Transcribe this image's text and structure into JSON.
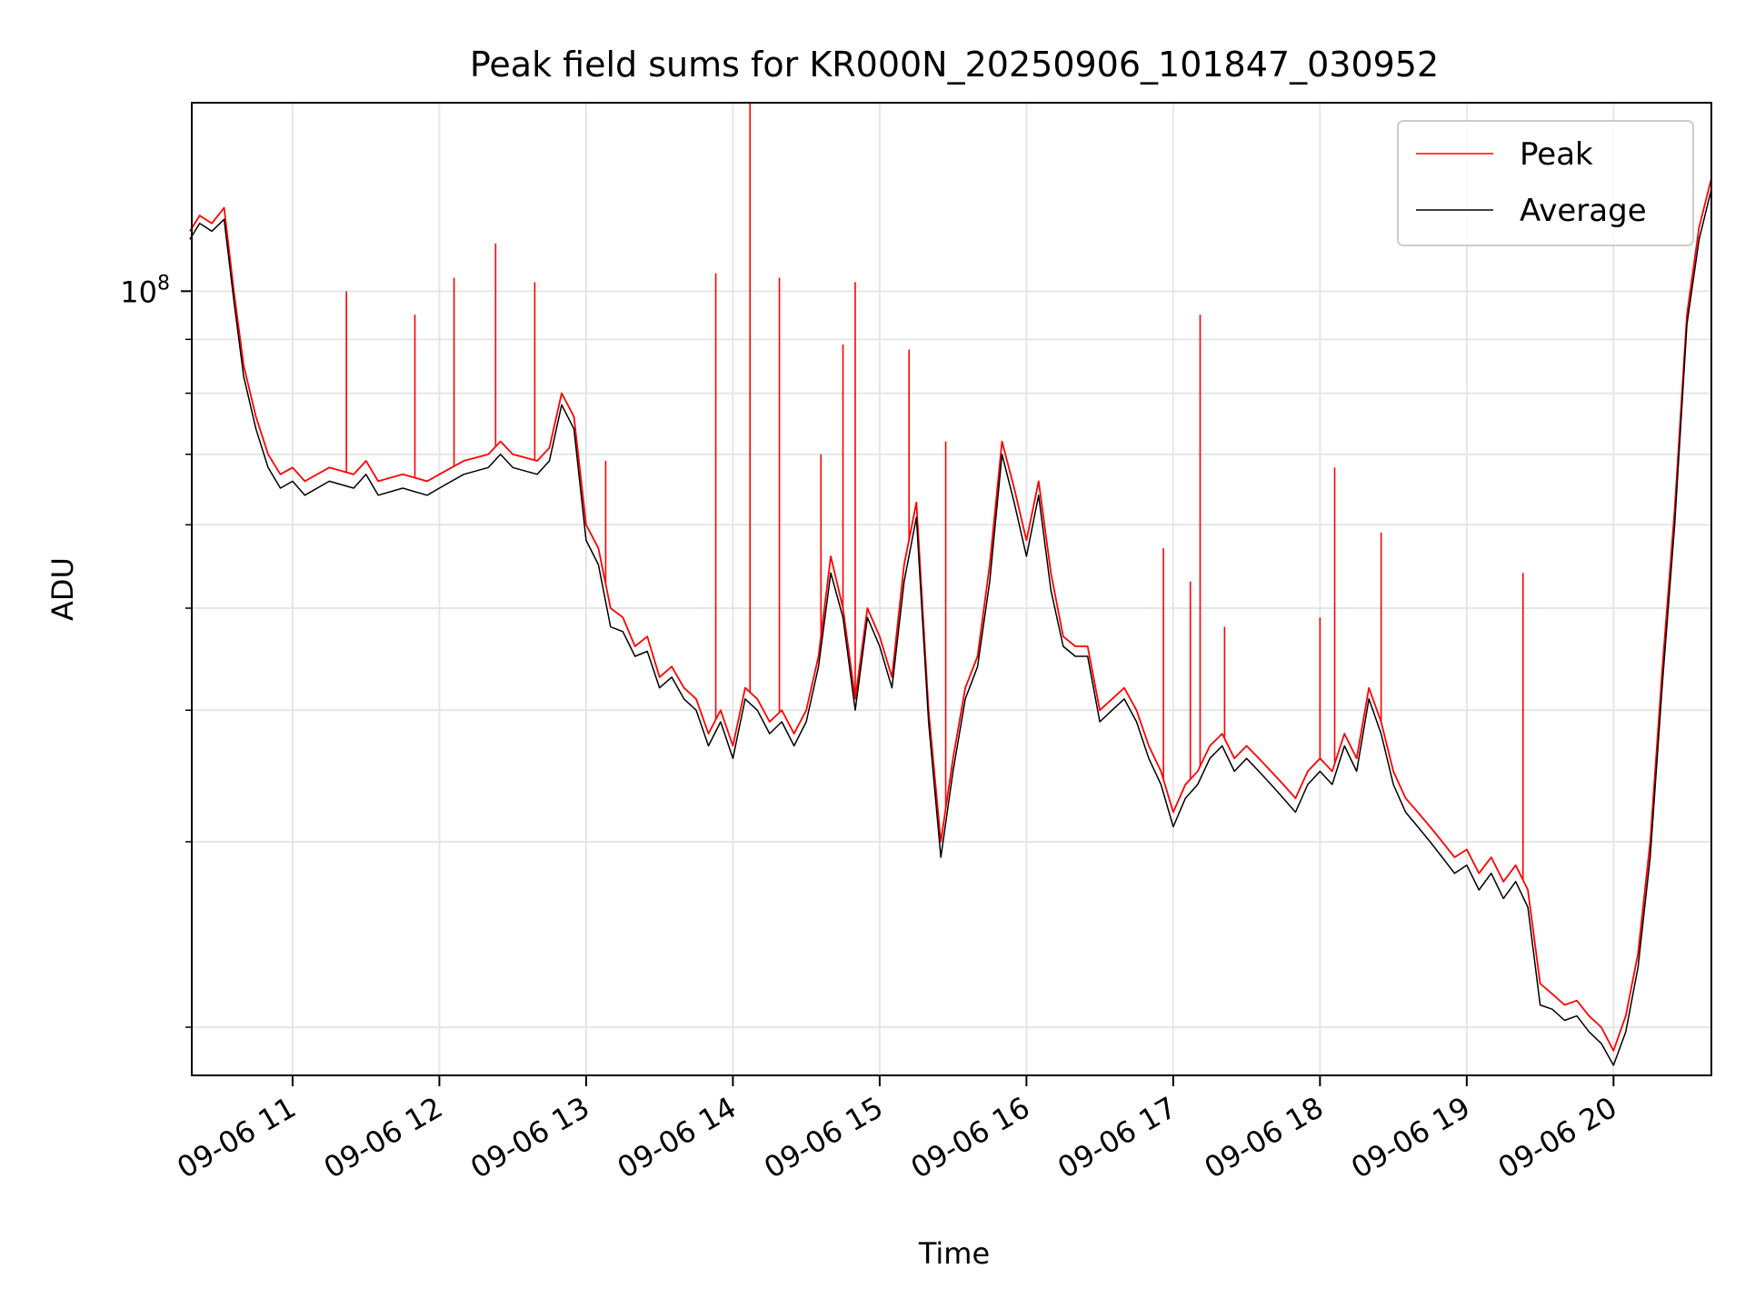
{
  "chart_data": {
    "type": "line",
    "title": "Peak field sums for KR000N_20250906_101847_030952",
    "xlabel": "Time",
    "ylabel": "ADU",
    "y_scale": "log",
    "grid": true,
    "legend_position": "top-right",
    "xlim": [
      "2025-09-06 10:18:47",
      "2025-09-06 20:40:00"
    ],
    "ylim": [
      18000000,
      151000000
    ],
    "x_tick_labels": [
      "09-06 11",
      "09-06 12",
      "09-06 13",
      "09-06 14",
      "09-06 15",
      "09-06 16",
      "09-06 17",
      "09-06 18",
      "09-06 19",
      "09-06 20"
    ],
    "y_tick_labels": [
      {
        "value": 100000000,
        "label": "10",
        "exp": "8"
      }
    ],
    "y_minor_ticks": [
      20000000,
      30000000,
      40000000,
      50000000,
      60000000,
      70000000,
      80000000,
      90000000
    ],
    "series": [
      {
        "name": "Peak",
        "color": "#ff0000",
        "points": [
          [
            "10:18",
            114000000
          ],
          [
            "10:22",
            118000000
          ],
          [
            "10:27",
            116000000
          ],
          [
            "10:32",
            120000000
          ],
          [
            "10:36",
            100000000
          ],
          [
            "10:40",
            85000000
          ],
          [
            "10:45",
            76000000
          ],
          [
            "10:50",
            70000000
          ],
          [
            "10:55",
            67000000
          ],
          [
            "11:00",
            68000000
          ],
          [
            "11:05",
            66000000
          ],
          [
            "11:15",
            68000000
          ],
          [
            "11:25",
            67000000
          ],
          [
            "11:30",
            69000000
          ],
          [
            "11:35",
            66000000
          ],
          [
            "11:45",
            67000000
          ],
          [
            "11:55",
            66000000
          ],
          [
            "12:00",
            67000000
          ],
          [
            "12:10",
            69000000
          ],
          [
            "12:20",
            70000000
          ],
          [
            "12:25",
            72000000
          ],
          [
            "12:30",
            70000000
          ],
          [
            "12:40",
            69000000
          ],
          [
            "12:45",
            71000000
          ],
          [
            "12:50",
            80000000
          ],
          [
            "12:55",
            76000000
          ],
          [
            "13:00",
            60000000
          ],
          [
            "13:05",
            57000000
          ],
          [
            "13:10",
            50000000
          ],
          [
            "13:15",
            49000000
          ],
          [
            "13:20",
            46000000
          ],
          [
            "13:25",
            47000000
          ],
          [
            "13:30",
            43000000
          ],
          [
            "13:35",
            44000000
          ],
          [
            "13:40",
            42000000
          ],
          [
            "13:45",
            41000000
          ],
          [
            "13:50",
            38000000
          ],
          [
            "13:55",
            40000000
          ],
          [
            "14:00",
            37000000
          ],
          [
            "14:05",
            42000000
          ],
          [
            "14:10",
            41000000
          ],
          [
            "14:15",
            39000000
          ],
          [
            "14:20",
            40000000
          ],
          [
            "14:25",
            38000000
          ],
          [
            "14:30",
            40000000
          ],
          [
            "14:35",
            45000000
          ],
          [
            "14:40",
            56000000
          ],
          [
            "14:45",
            50000000
          ],
          [
            "14:50",
            41000000
          ],
          [
            "14:55",
            50000000
          ],
          [
            "15:00",
            47000000
          ],
          [
            "15:05",
            43000000
          ],
          [
            "15:10",
            55000000
          ],
          [
            "15:15",
            63000000
          ],
          [
            "15:20",
            40000000
          ],
          [
            "15:25",
            30000000
          ],
          [
            "15:30",
            36000000
          ],
          [
            "15:35",
            42000000
          ],
          [
            "15:40",
            45000000
          ],
          [
            "15:45",
            55000000
          ],
          [
            "15:50",
            72000000
          ],
          [
            "15:55",
            65000000
          ],
          [
            "16:00",
            58000000
          ],
          [
            "16:05",
            66000000
          ],
          [
            "16:10",
            54000000
          ],
          [
            "16:15",
            47000000
          ],
          [
            "16:20",
            46000000
          ],
          [
            "16:25",
            46000000
          ],
          [
            "16:30",
            40000000
          ],
          [
            "16:35",
            41000000
          ],
          [
            "16:40",
            42000000
          ],
          [
            "16:45",
            40000000
          ],
          [
            "16:50",
            37000000
          ],
          [
            "16:55",
            35000000
          ],
          [
            "17:00",
            32000000
          ],
          [
            "17:05",
            34000000
          ],
          [
            "17:10",
            35000000
          ],
          [
            "17:15",
            37000000
          ],
          [
            "17:20",
            38000000
          ],
          [
            "17:25",
            36000000
          ],
          [
            "17:30",
            37000000
          ],
          [
            "17:35",
            36000000
          ],
          [
            "17:40",
            35000000
          ],
          [
            "17:45",
            34000000
          ],
          [
            "17:50",
            33000000
          ],
          [
            "17:55",
            35000000
          ],
          [
            "18:00",
            36000000
          ],
          [
            "18:05",
            35000000
          ],
          [
            "18:10",
            38000000
          ],
          [
            "18:15",
            36000000
          ],
          [
            "18:20",
            42000000
          ],
          [
            "18:25",
            39000000
          ],
          [
            "18:30",
            35000000
          ],
          [
            "18:35",
            33000000
          ],
          [
            "18:40",
            32000000
          ],
          [
            "18:45",
            31000000
          ],
          [
            "18:50",
            30000000
          ],
          [
            "18:55",
            29000000
          ],
          [
            "19:00",
            29500000
          ],
          [
            "19:05",
            28000000
          ],
          [
            "19:10",
            29000000
          ],
          [
            "19:15",
            27500000
          ],
          [
            "19:20",
            28500000
          ],
          [
            "19:25",
            27000000
          ],
          [
            "19:30",
            22000000
          ],
          [
            "19:35",
            21500000
          ],
          [
            "19:40",
            21000000
          ],
          [
            "19:45",
            21200000
          ],
          [
            "19:50",
            20500000
          ],
          [
            "19:55",
            20000000
          ],
          [
            "20:00",
            19000000
          ],
          [
            "20:05",
            20500000
          ],
          [
            "20:10",
            23500000
          ],
          [
            "20:15",
            30000000
          ],
          [
            "20:20",
            44000000
          ],
          [
            "20:25",
            62000000
          ],
          [
            "20:30",
            95000000
          ],
          [
            "20:35",
            115000000
          ],
          [
            "20:40",
            128000000
          ]
        ],
        "spikes": [
          [
            "11:22",
            100000000
          ],
          [
            "11:50",
            95000000
          ],
          [
            "12:06",
            103000000
          ],
          [
            "12:23",
            111000000
          ],
          [
            "12:39",
            102000000
          ],
          [
            "13:08",
            69000000
          ],
          [
            "13:53",
            104000000
          ],
          [
            "14:07",
            151000000
          ],
          [
            "14:19",
            103000000
          ],
          [
            "14:36",
            70000000
          ],
          [
            "14:45",
            89000000
          ],
          [
            "14:50",
            102000000
          ],
          [
            "15:12",
            88000000
          ],
          [
            "15:27",
            72000000
          ],
          [
            "16:56",
            57000000
          ],
          [
            "17:07",
            53000000
          ],
          [
            "17:11",
            95000000
          ],
          [
            "17:21",
            48000000
          ],
          [
            "18:00",
            49000000
          ],
          [
            "18:06",
            68000000
          ],
          [
            "18:25",
            59000000
          ],
          [
            "19:23",
            54000000
          ]
        ]
      },
      {
        "name": "Average",
        "color": "#000000",
        "points": [
          [
            "10:18",
            112000000
          ],
          [
            "10:22",
            116000000
          ],
          [
            "10:27",
            114000000
          ],
          [
            "10:32",
            117000000
          ],
          [
            "10:36",
            98000000
          ],
          [
            "10:40",
            83000000
          ],
          [
            "10:45",
            74000000
          ],
          [
            "10:50",
            68000000
          ],
          [
            "10:55",
            65000000
          ],
          [
            "11:00",
            66000000
          ],
          [
            "11:05",
            64000000
          ],
          [
            "11:15",
            66000000
          ],
          [
            "11:25",
            65000000
          ],
          [
            "11:30",
            67000000
          ],
          [
            "11:35",
            64000000
          ],
          [
            "11:45",
            65000000
          ],
          [
            "11:55",
            64000000
          ],
          [
            "12:00",
            65000000
          ],
          [
            "12:10",
            67000000
          ],
          [
            "12:20",
            68000000
          ],
          [
            "12:25",
            70000000
          ],
          [
            "12:30",
            68000000
          ],
          [
            "12:40",
            67000000
          ],
          [
            "12:45",
            69000000
          ],
          [
            "12:50",
            78000000
          ],
          [
            "12:55",
            74000000
          ],
          [
            "13:00",
            58000000
          ],
          [
            "13:05",
            55000000
          ],
          [
            "13:10",
            48000000
          ],
          [
            "13:15",
            47500000
          ],
          [
            "13:20",
            45000000
          ],
          [
            "13:25",
            45500000
          ],
          [
            "13:30",
            42000000
          ],
          [
            "13:35",
            43000000
          ],
          [
            "13:40",
            41000000
          ],
          [
            "13:45",
            40000000
          ],
          [
            "13:50",
            37000000
          ],
          [
            "13:55",
            39000000
          ],
          [
            "14:00",
            36000000
          ],
          [
            "14:05",
            41000000
          ],
          [
            "14:10",
            40000000
          ],
          [
            "14:15",
            38000000
          ],
          [
            "14:20",
            39000000
          ],
          [
            "14:25",
            37000000
          ],
          [
            "14:30",
            39000000
          ],
          [
            "14:35",
            44000000
          ],
          [
            "14:40",
            54000000
          ],
          [
            "14:45",
            49000000
          ],
          [
            "14:50",
            40000000
          ],
          [
            "14:55",
            49000000
          ],
          [
            "15:00",
            46000000
          ],
          [
            "15:05",
            42000000
          ],
          [
            "15:10",
            53000000
          ],
          [
            "15:15",
            61000000
          ],
          [
            "15:20",
            39000000
          ],
          [
            "15:25",
            29000000
          ],
          [
            "15:30",
            35000000
          ],
          [
            "15:35",
            41000000
          ],
          [
            "15:40",
            44000000
          ],
          [
            "15:45",
            53000000
          ],
          [
            "15:50",
            70000000
          ],
          [
            "15:55",
            63000000
          ],
          [
            "16:00",
            56000000
          ],
          [
            "16:05",
            64000000
          ],
          [
            "16:10",
            52000000
          ],
          [
            "16:15",
            46000000
          ],
          [
            "16:20",
            45000000
          ],
          [
            "16:25",
            45000000
          ],
          [
            "16:30",
            39000000
          ],
          [
            "16:35",
            40000000
          ],
          [
            "16:40",
            41000000
          ],
          [
            "16:45",
            39000000
          ],
          [
            "16:50",
            36000000
          ],
          [
            "16:55",
            34000000
          ],
          [
            "17:00",
            31000000
          ],
          [
            "17:05",
            33000000
          ],
          [
            "17:10",
            34000000
          ],
          [
            "17:15",
            36000000
          ],
          [
            "17:20",
            37000000
          ],
          [
            "17:25",
            35000000
          ],
          [
            "17:30",
            36000000
          ],
          [
            "17:35",
            35000000
          ],
          [
            "17:40",
            34000000
          ],
          [
            "17:45",
            33000000
          ],
          [
            "17:50",
            32000000
          ],
          [
            "17:55",
            34000000
          ],
          [
            "18:00",
            35000000
          ],
          [
            "18:05",
            34000000
          ],
          [
            "18:10",
            37000000
          ],
          [
            "18:15",
            35000000
          ],
          [
            "18:20",
            41000000
          ],
          [
            "18:25",
            38000000
          ],
          [
            "18:30",
            34000000
          ],
          [
            "18:35",
            32000000
          ],
          [
            "18:40",
            31000000
          ],
          [
            "18:45",
            30000000
          ],
          [
            "18:50",
            29000000
          ],
          [
            "18:55",
            28000000
          ],
          [
            "19:00",
            28500000
          ],
          [
            "19:05",
            27000000
          ],
          [
            "19:10",
            28000000
          ],
          [
            "19:15",
            26500000
          ],
          [
            "19:20",
            27500000
          ],
          [
            "19:25",
            26000000
          ],
          [
            "19:30",
            21000000
          ],
          [
            "19:35",
            20800000
          ],
          [
            "19:40",
            20300000
          ],
          [
            "19:45",
            20500000
          ],
          [
            "19:50",
            19800000
          ],
          [
            "19:55",
            19300000
          ],
          [
            "20:00",
            18400000
          ],
          [
            "20:05",
            19800000
          ],
          [
            "20:10",
            22800000
          ],
          [
            "20:15",
            29000000
          ],
          [
            "20:20",
            42500000
          ],
          [
            "20:25",
            60000000
          ],
          [
            "20:30",
            93000000
          ],
          [
            "20:35",
            112000000
          ],
          [
            "20:40",
            125000000
          ]
        ]
      }
    ]
  }
}
